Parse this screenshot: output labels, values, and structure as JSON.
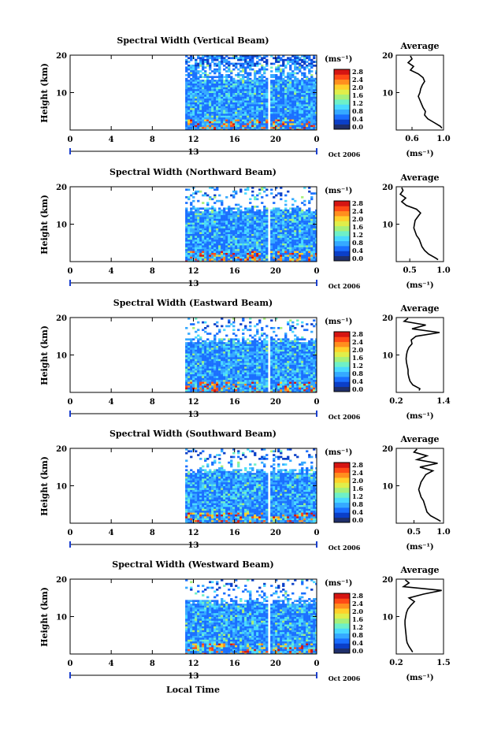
{
  "figure": {
    "footer_xlabel": "Local Time",
    "date_label": "Oct 2006"
  },
  "colors": {
    "colorbar": [
      "#1f2f6b",
      "#0b3fc8",
      "#1a6fff",
      "#35a9ff",
      "#49d9ff",
      "#6ef0c8",
      "#a6f07a",
      "#e0ee4a",
      "#ffd02a",
      "#ff8f1e",
      "#ff4a16",
      "#d51512"
    ],
    "profile_line": "#000000",
    "gap": "#ffffff"
  },
  "chart_data": [
    {
      "type": "heatmap",
      "title": "Spectral Width (Vertical Beam)",
      "ylabel": "Height (km)",
      "ylim": [
        0,
        20
      ],
      "yticks": [
        "10",
        "20"
      ],
      "xlim": [
        0,
        24
      ],
      "xticks": [
        "0",
        "4",
        "8",
        "12",
        "16",
        "20",
        "0"
      ],
      "day_label": "13",
      "data_start_hour": 11.2,
      "data_gap_hour": 19.2,
      "colorbar": {
        "unit": "(ms⁻¹)",
        "ticks": [
          "0.0",
          "0.4",
          "0.8",
          "1.2",
          "1.6",
          "2.0",
          "2.4",
          "2.8"
        ]
      },
      "profile": {
        "title": "Average",
        "xlabel": "(ms⁻¹)",
        "xlim": [
          0.4,
          1.0
        ],
        "xticks": [
          "0.6",
          "1.0"
        ],
        "ylim": [
          0,
          20
        ],
        "yticks": [
          "10",
          "20"
        ],
        "y": [
          0.5,
          1,
          2,
          3,
          4,
          5,
          6,
          7,
          8,
          9,
          10,
          11,
          12,
          13,
          14,
          15,
          16,
          17,
          18,
          19,
          19.8
        ],
        "x": [
          0.98,
          0.96,
          0.88,
          0.8,
          0.76,
          0.77,
          0.74,
          0.72,
          0.7,
          0.68,
          0.7,
          0.71,
          0.73,
          0.76,
          0.74,
          0.68,
          0.58,
          0.62,
          0.55,
          0.6,
          0.58
        ]
      }
    },
    {
      "type": "heatmap",
      "title": "Spectral Width (Northward Beam)",
      "ylabel": "Height (km)",
      "ylim": [
        0,
        20
      ],
      "yticks": [
        "10",
        "20"
      ],
      "xlim": [
        0,
        24
      ],
      "xticks": [
        "0",
        "4",
        "8",
        "12",
        "16",
        "20",
        "0"
      ],
      "day_label": "13",
      "data_start_hour": 11.2,
      "data_gap_hour": 19.2,
      "colorbar": {
        "unit": "(ms⁻¹)",
        "ticks": [
          "0.0",
          "0.4",
          "0.8",
          "1.2",
          "1.6",
          "2.0",
          "2.4",
          "2.8"
        ]
      },
      "profile": {
        "title": "Average",
        "xlabel": "(ms⁻¹)",
        "xlim": [
          0.3,
          1.0
        ],
        "xticks": [
          "0.5",
          "1.0"
        ],
        "ylim": [
          0,
          20
        ],
        "yticks": [
          "10",
          "20"
        ],
        "y": [
          0.5,
          1,
          2,
          3,
          4,
          5,
          6,
          7,
          8,
          9,
          10,
          11,
          12,
          13,
          14,
          15,
          16,
          17,
          18,
          19,
          19.8
        ],
        "x": [
          0.92,
          0.88,
          0.78,
          0.72,
          0.68,
          0.66,
          0.64,
          0.6,
          0.58,
          0.56,
          0.57,
          0.58,
          0.62,
          0.66,
          0.6,
          0.45,
          0.38,
          0.44,
          0.36,
          0.4,
          0.38
        ]
      }
    },
    {
      "type": "heatmap",
      "title": "Spectral Width (Eastward Beam)",
      "ylabel": "Height (km)",
      "ylim": [
        0,
        20
      ],
      "yticks": [
        "10",
        "20"
      ],
      "xlim": [
        0,
        24
      ],
      "xticks": [
        "0",
        "4",
        "8",
        "12",
        "16",
        "20",
        "0"
      ],
      "day_label": "13",
      "data_start_hour": 11.2,
      "data_gap_hour": 19.2,
      "colorbar": {
        "unit": "(ms⁻¹)",
        "ticks": [
          "0.0",
          "0.4",
          "0.8",
          "1.2",
          "1.6",
          "2.0",
          "2.4",
          "2.8"
        ]
      },
      "profile": {
        "title": "Average",
        "xlabel": "(ms⁻¹)",
        "xlim": [
          0.2,
          1.4
        ],
        "xticks": [
          "0.2",
          "1.4"
        ],
        "ylim": [
          0,
          20
        ],
        "yticks": [
          "10",
          "20"
        ],
        "y": [
          0.5,
          1,
          2,
          3,
          4,
          5,
          6,
          7,
          8,
          9,
          10,
          11,
          12,
          13,
          14,
          15,
          16,
          17,
          18,
          19,
          19.8
        ],
        "x": [
          0.78,
          0.8,
          0.62,
          0.55,
          0.52,
          0.5,
          0.5,
          0.48,
          0.46,
          0.45,
          0.46,
          0.48,
          0.52,
          0.6,
          0.58,
          0.7,
          1.3,
          0.6,
          0.95,
          0.4,
          0.5
        ]
      }
    },
    {
      "type": "heatmap",
      "title": "Spectral Width (Southward Beam)",
      "ylabel": "Height (km)",
      "ylim": [
        0,
        20
      ],
      "yticks": [
        "10",
        "20"
      ],
      "xlim": [
        0,
        24
      ],
      "xticks": [
        "0",
        "4",
        "8",
        "12",
        "16",
        "20",
        "0"
      ],
      "day_label": "13",
      "data_start_hour": 11.2,
      "data_gap_hour": 19.2,
      "colorbar": {
        "unit": "(ms⁻¹)",
        "ticks": [
          "0.0",
          "0.4",
          "0.8",
          "1.2",
          "1.6",
          "2.0",
          "2.4",
          "2.8"
        ]
      },
      "profile": {
        "title": "Average",
        "xlabel": "(ms⁻¹)",
        "xlim": [
          0.2,
          1.0
        ],
        "xticks": [
          "0.5",
          "1.0"
        ],
        "ylim": [
          0,
          20
        ],
        "yticks": [
          "10",
          "20"
        ],
        "y": [
          0.5,
          1,
          2,
          3,
          4,
          5,
          6,
          7,
          8,
          9,
          10,
          11,
          12,
          13,
          14,
          15,
          16,
          17,
          18,
          19,
          19.8
        ],
        "x": [
          0.95,
          0.9,
          0.78,
          0.72,
          0.7,
          0.68,
          0.66,
          0.62,
          0.6,
          0.58,
          0.6,
          0.62,
          0.66,
          0.7,
          0.82,
          0.6,
          0.9,
          0.55,
          0.72,
          0.5,
          0.55
        ]
      }
    },
    {
      "type": "heatmap",
      "title": "Spectral Width (Westward Beam)",
      "ylabel": "Height (km)",
      "ylim": [
        0,
        20
      ],
      "yticks": [
        "10",
        "20"
      ],
      "xlim": [
        0,
        24
      ],
      "xticks": [
        "0",
        "4",
        "8",
        "12",
        "16",
        "20",
        "0"
      ],
      "day_label": "13",
      "data_start_hour": 11.2,
      "data_gap_hour": 19.2,
      "colorbar": {
        "unit": "(ms⁻¹)",
        "ticks": [
          "0.0",
          "0.4",
          "0.8",
          "1.2",
          "1.6",
          "2.0",
          "2.4",
          "2.8"
        ]
      },
      "profile": {
        "title": "Average",
        "xlabel": "(ms⁻¹)",
        "xlim": [
          0.2,
          1.5
        ],
        "xticks": [
          "0.2",
          "1.5"
        ],
        "ylim": [
          0,
          20
        ],
        "yticks": [
          "10",
          "20"
        ],
        "y": [
          0.5,
          1,
          2,
          3,
          4,
          5,
          6,
          7,
          8,
          9,
          10,
          11,
          12,
          13,
          14,
          15,
          16,
          17,
          18,
          19,
          19.8
        ],
        "x": [
          0.65,
          0.62,
          0.55,
          0.5,
          0.48,
          0.47,
          0.46,
          0.45,
          0.44,
          0.44,
          0.46,
          0.48,
          0.52,
          0.6,
          0.7,
          0.55,
          0.95,
          1.45,
          0.4,
          0.55,
          0.45
        ]
      }
    }
  ]
}
